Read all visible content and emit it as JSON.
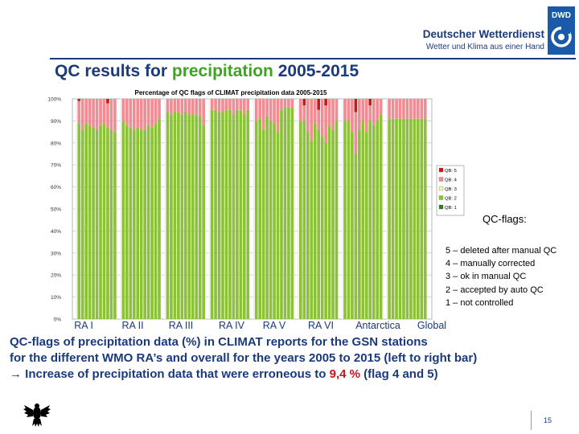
{
  "header": {
    "brand_name": "Deutscher Wetterdienst",
    "brand_tagline": "Wetter und Klima aus einer Hand",
    "logo_abbrev": "DWD"
  },
  "title": {
    "prefix": "QC results for ",
    "highlight": "precipitation",
    "suffix": " 2005-2015"
  },
  "chart_data": {
    "type": "bar",
    "title": "Percentage of QC flags of CLIMAT precipitation data 2005-2015",
    "stacked": true,
    "ylim": [
      0,
      100
    ],
    "y_ticks": [
      "0%",
      "10%",
      "20%",
      "30%",
      "40%",
      "50%",
      "60%",
      "70%",
      "80%",
      "90%",
      "100%"
    ],
    "group_labels": [
      "RA I",
      "RA II",
      "RA III",
      "RA IV",
      "RA V",
      "RA VI",
      "Antarctica",
      "Global"
    ],
    "legend_position": "right",
    "legend": [
      "QB: 5",
      "QB: 4",
      "QB: 3",
      "QB: 2",
      "QB: 1"
    ],
    "colors": {
      "QB5": "#c81818",
      "QB4": "#f08c94",
      "QB3": "#f8f2b0",
      "QB2": "#8cc238",
      "QB1": "#2c7a22"
    },
    "groups": [
      {
        "name": "RA I",
        "ok": [
          89,
          86,
          89,
          88,
          87,
          86,
          88,
          89,
          87,
          86,
          85
        ],
        "qb5": [
          1,
          0,
          0,
          0,
          0,
          0,
          0,
          0,
          2,
          0,
          0
        ]
      },
      {
        "name": "RA II",
        "ok": [
          90,
          88,
          87,
          86,
          87,
          86,
          86,
          88,
          87,
          89,
          91
        ],
        "qb5": [
          0,
          0,
          0,
          0,
          0,
          0,
          0,
          0,
          0,
          0,
          0
        ]
      },
      {
        "name": "RA III",
        "ok": [
          94,
          93,
          94,
          94,
          93,
          94,
          93,
          93,
          93,
          92,
          88
        ],
        "qb5": [
          0,
          0,
          0,
          0,
          0,
          0,
          0,
          0,
          0,
          0,
          0
        ]
      },
      {
        "name": "RA IV",
        "ok": [
          95,
          95,
          94,
          94,
          95,
          95,
          93,
          95,
          95,
          93,
          95
        ],
        "qb5": [
          0,
          0,
          0,
          0,
          0,
          0,
          0,
          0,
          0,
          0,
          0
        ]
      },
      {
        "name": "RA V",
        "ok": [
          90,
          91,
          86,
          92,
          90,
          89,
          85,
          95,
          96,
          96,
          96
        ],
        "qb5": [
          0,
          0,
          0,
          0,
          0,
          0,
          0,
          0,
          0,
          0,
          0
        ]
      },
      {
        "name": "RA VI",
        "ok": [
          90,
          90,
          85,
          81,
          89,
          86,
          83,
          80,
          88,
          86,
          90
        ],
        "qb5": [
          0,
          3,
          0,
          0,
          0,
          5,
          0,
          3,
          0,
          0,
          0
        ]
      },
      {
        "name": "Antarctica",
        "ok": [
          90,
          90,
          85,
          75,
          86,
          90,
          85,
          90,
          88,
          90,
          93
        ],
        "qb5": [
          0,
          0,
          0,
          6,
          0,
          0,
          0,
          3,
          0,
          0,
          0
        ]
      },
      {
        "name": "Global",
        "ok": [
          91,
          91,
          91,
          91,
          91,
          91,
          91,
          91,
          91,
          91,
          91
        ],
        "qb5": [
          0,
          0,
          0,
          0,
          0,
          0,
          0,
          0,
          0,
          0,
          0
        ]
      }
    ]
  },
  "flags": {
    "title": "QC-flags:",
    "items": [
      "5 – deleted after manual QC",
      "4 – manually corrected",
      "3 – ok in manual QC",
      "2 – accepted by auto QC",
      "1 – not controlled"
    ]
  },
  "caption": {
    "line1": "QC-flags of precipitation data (%) in CLIMAT reports for the GSN stations",
    "line2": "for the different WMO RA’s and overall for the years 2005 to 2015 (left to right bar)",
    "line3_arrow": "→",
    "line3_prefix": " Increase of precipitation data that were erroneous to ",
    "line3_highlight": "9,4 %",
    "line3_suffix": " (flag 4 and 5)"
  },
  "footer": {
    "page_number": "15"
  }
}
